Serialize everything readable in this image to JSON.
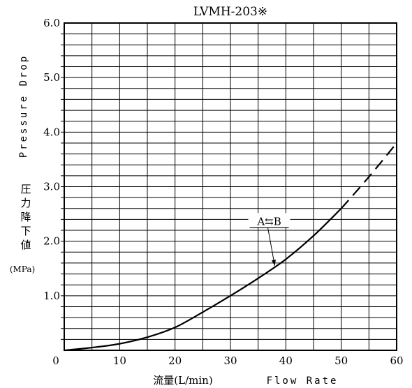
{
  "chart_data": {
    "type": "line",
    "title": "LVMH-203※",
    "xlabel_jp": "流量(L/min)",
    "xlabel_en": "Flow Rate",
    "ylabel_en": "Pressure Drop",
    "ylabel_jp": "圧力降下値",
    "y_unit": "(MPa)",
    "xlim": [
      0,
      60
    ],
    "ylim": [
      0,
      6.0
    ],
    "x_ticks": [
      "0",
      "10",
      "20",
      "30",
      "40",
      "50",
      "60"
    ],
    "y_ticks": [
      "1.0",
      "2.0",
      "3.0",
      "4.0",
      "5.0",
      "6.0"
    ],
    "grid": true,
    "series": [
      {
        "name": "A⇆B",
        "solid": {
          "x": [
            0,
            5,
            10,
            15,
            20,
            25,
            30,
            35,
            40,
            45,
            50
          ],
          "y": [
            0,
            0.05,
            0.12,
            0.24,
            0.42,
            0.7,
            1.0,
            1.32,
            1.67,
            2.1,
            2.6
          ]
        },
        "dashed": {
          "x": [
            50,
            55,
            60
          ],
          "y": [
            2.6,
            3.18,
            3.8
          ]
        }
      }
    ],
    "annotation": {
      "text": "A⇆B",
      "label_x": 37,
      "label_y": 2.35,
      "points_to_x": 38,
      "points_to_y": 1.55
    }
  }
}
